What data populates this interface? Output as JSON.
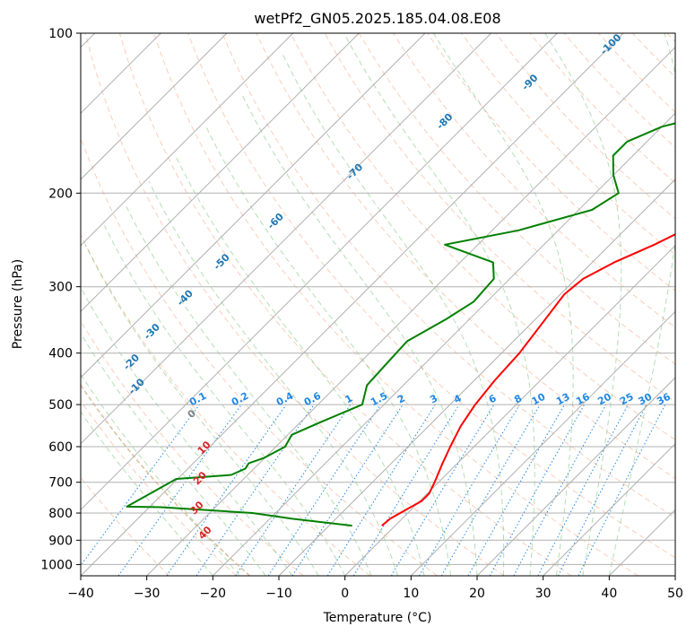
{
  "chart_data": {
    "type": "line",
    "title": "wetPf2_GN05.2025.185.04.08.E08",
    "xlabel": "Temperature (°C)",
    "ylabel": "Pressure (hPa)",
    "xlim": [
      -40,
      50
    ],
    "ylim": [
      1050,
      100
    ],
    "y_scale": "log",
    "xticks": [
      -40,
      -30,
      -20,
      -10,
      0,
      10,
      20,
      30,
      40,
      50
    ],
    "xtick_labels": [
      "−40",
      "−30",
      "−20",
      "−10",
      "0",
      "10",
      "20",
      "30",
      "40",
      "50"
    ],
    "yticks": [
      100,
      200,
      300,
      400,
      500,
      600,
      700,
      800,
      900,
      1000
    ],
    "yticks_labels": [
      "100",
      "200",
      "300",
      "400",
      "500",
      "600",
      "700",
      "800",
      "900",
      "1000"
    ],
    "grid": true,
    "colors": {
      "temperature": "#ff0000",
      "dewpoint": "#008000",
      "isotherms": "#b0b0b0",
      "dry_adiabats": "#f4a582",
      "moist_adiabats": "#2ca02c",
      "mixing_ratio": "#1e88e5",
      "lcl_line": "#d2b48c",
      "wetbulb_label": "#1f77b4",
      "dry_label": "#d62728"
    },
    "series": [
      {
        "name": "temperature",
        "points": [
          {
            "p": 845,
            "t": -2
          },
          {
            "p": 820,
            "t": -1.8
          },
          {
            "p": 790,
            "t": -0.8
          },
          {
            "p": 760,
            "t": 0.3
          },
          {
            "p": 735,
            "t": 0.3
          },
          {
            "p": 700,
            "t": -0.6
          },
          {
            "p": 650,
            "t": -2.1
          },
          {
            "p": 600,
            "t": -3.6
          },
          {
            "p": 550,
            "t": -5.1
          },
          {
            "p": 500,
            "t": -6.2
          },
          {
            "p": 450,
            "t": -6.9
          },
          {
            "p": 400,
            "t": -7.3
          },
          {
            "p": 350,
            "t": -8.4
          },
          {
            "p": 310,
            "t": -9.4
          },
          {
            "p": 290,
            "t": -8.9
          },
          {
            "p": 270,
            "t": -6.7
          },
          {
            "p": 250,
            "t": -3.3
          },
          {
            "p": 220,
            "t": 1.3
          },
          {
            "p": 200,
            "t": 4.3
          },
          {
            "p": 175,
            "t": 8.0
          },
          {
            "p": 160,
            "t": 11.1
          },
          {
            "p": 150,
            "t": 12.3
          },
          {
            "p": 140,
            "t": 13.6
          },
          {
            "p": 130,
            "t": 15.3
          },
          {
            "p": 120,
            "t": 17.2
          },
          {
            "p": 115,
            "t": 19.0
          },
          {
            "p": 110,
            "t": 20.9
          },
          {
            "p": 105,
            "t": 23.4
          },
          {
            "p": 100,
            "t": 25.2
          }
        ]
      },
      {
        "name": "dewpoint",
        "points": [
          {
            "p": 845,
            "t": -6.5
          },
          {
            "p": 820,
            "t": -16.6
          },
          {
            "p": 800,
            "t": -23.5
          },
          {
            "p": 780,
            "t": -38.2
          },
          {
            "p": 778,
            "t": -43.5
          },
          {
            "p": 690,
            "t": -40.2
          },
          {
            "p": 678,
            "t": -32.5
          },
          {
            "p": 660,
            "t": -31.3
          },
          {
            "p": 645,
            "t": -31.6
          },
          {
            "p": 630,
            "t": -30.1
          },
          {
            "p": 600,
            "t": -28.6
          },
          {
            "p": 570,
            "t": -29.4
          },
          {
            "p": 540,
            "t": -27.0
          },
          {
            "p": 500,
            "t": -23.3
          },
          {
            "p": 460,
            "t": -25.5
          },
          {
            "p": 420,
            "t": -25.8
          },
          {
            "p": 380,
            "t": -26.1
          },
          {
            "p": 345,
            "t": -23.5
          },
          {
            "p": 320,
            "t": -22.0
          },
          {
            "p": 290,
            "t": -22.4
          },
          {
            "p": 270,
            "t": -25.0
          },
          {
            "p": 250,
            "t": -35.0
          },
          {
            "p": 235,
            "t": -26.0
          },
          {
            "p": 215,
            "t": -18.0
          },
          {
            "p": 200,
            "t": -16.5
          },
          {
            "p": 185,
            "t": -20.0
          },
          {
            "p": 170,
            "t": -23.0
          },
          {
            "p": 160,
            "t": -23.0
          },
          {
            "p": 150,
            "t": -20.0
          },
          {
            "p": 140,
            "t": -13.0
          },
          {
            "p": 130,
            "t": -8.0
          },
          {
            "p": 120,
            "t": -4.5
          },
          {
            "p": 110,
            "t": -1.0
          },
          {
            "p": 105,
            "t": 0.0
          },
          {
            "p": 100,
            "t": 0.8
          }
        ]
      }
    ],
    "wetbulb_labels": [
      {
        "text": "-100",
        "p": 106,
        "t": -39.5
      },
      {
        "text": "-90",
        "p": 125,
        "t": -46
      },
      {
        "text": "-80",
        "p": 148,
        "t": -53
      },
      {
        "text": "-70",
        "p": 184,
        "t": -59
      },
      {
        "text": "-60",
        "p": 228,
        "t": -63.5
      },
      {
        "text": "-50",
        "p": 272,
        "t": -65.5
      },
      {
        "text": "-40",
        "p": 318,
        "t": -65.6
      },
      {
        "text": "-30",
        "p": 368,
        "t": -65.5
      },
      {
        "text": "-20",
        "p": 420,
        "t": -64
      },
      {
        "text": "-10",
        "p": 467,
        "t": -59.5
      },
      {
        "text": "0",
        "p": 526,
        "t": -47
      }
    ],
    "dry_labels": [
      {
        "text": "10",
        "p": 609,
        "t": -40
      },
      {
        "text": "20",
        "p": 695,
        "t": -36
      },
      {
        "text": "30",
        "p": 790,
        "t": -32
      },
      {
        "text": "40",
        "p": 880,
        "t": -27
      }
    ],
    "mixing_ratio_labels": [
      {
        "text": "0.1",
        "w": 0.1
      },
      {
        "text": "0.2",
        "w": 0.2
      },
      {
        "text": "0.4",
        "w": 0.4
      },
      {
        "text": "0.6",
        "w": 0.6
      },
      {
        "text": "1",
        "w": 1
      },
      {
        "text": "1.5",
        "w": 1.5
      },
      {
        "text": "2",
        "w": 2
      },
      {
        "text": "3",
        "w": 3
      },
      {
        "text": "4",
        "w": 4
      },
      {
        "text": "6",
        "w": 6
      },
      {
        "text": "8",
        "w": 8
      },
      {
        "text": "10",
        "w": 10
      },
      {
        "text": "13",
        "w": 13
      },
      {
        "text": "16",
        "w": 16
      },
      {
        "text": "20",
        "w": 20
      },
      {
        "text": "25",
        "w": 25
      },
      {
        "text": "30",
        "w": 30
      },
      {
        "text": "36",
        "w": 36
      }
    ],
    "mixing_ratio_label_pressure": 500
  }
}
